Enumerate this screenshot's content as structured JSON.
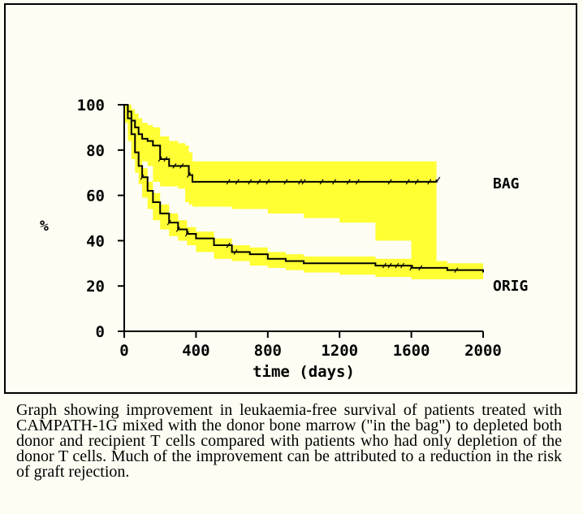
{
  "chart_data": {
    "type": "line",
    "xlabel": "time (days)",
    "ylabel": "%",
    "xlim": [
      0,
      2000
    ],
    "ylim": [
      0,
      100
    ],
    "xticks": [
      "0",
      "400",
      "800",
      "1200",
      "1600",
      "2000"
    ],
    "yticks": [
      "0",
      "20",
      "40",
      "60",
      "80",
      "100"
    ],
    "grid": false,
    "legend": "none",
    "band_color": "#ffff33",
    "line_color": "#000000",
    "series": [
      {
        "name": "BAG",
        "x": [
          0,
          20,
          40,
          60,
          80,
          100,
          130,
          160,
          200,
          250,
          300,
          340,
          360,
          380,
          600,
          800,
          1000,
          1200,
          1400,
          1600,
          1740
        ],
        "y": [
          100,
          97,
          93,
          90,
          87,
          85,
          84,
          82,
          76,
          73,
          73,
          73,
          69,
          66,
          66,
          66,
          66,
          66,
          66,
          66,
          67
        ],
        "lower": [
          100,
          93,
          87,
          82,
          79,
          77,
          75,
          73,
          66,
          64,
          64,
          63,
          57,
          56,
          55,
          54,
          52,
          50,
          48,
          40,
          27
        ],
        "upper": [
          100,
          100,
          98,
          96,
          94,
          92,
          91,
          90,
          86,
          84,
          83,
          82,
          79,
          75,
          75,
          75,
          75,
          75,
          75,
          75,
          75
        ],
        "censor_x": [
          200,
          230,
          280,
          320,
          360,
          580,
          630,
          700,
          750,
          800,
          900,
          980,
          1000,
          1100,
          1170,
          1250,
          1300,
          1480,
          1580,
          1630,
          1700,
          1750
        ]
      },
      {
        "name": "ORIG",
        "x": [
          0,
          20,
          40,
          60,
          80,
          100,
          130,
          160,
          200,
          250,
          300,
          350,
          400,
          500,
          600,
          700,
          800,
          900,
          1000,
          1200,
          1400,
          1600,
          1800,
          2000
        ],
        "y": [
          100,
          94,
          87,
          79,
          73,
          68,
          62,
          57,
          52,
          48,
          45,
          43,
          41,
          38,
          35,
          34,
          32,
          31,
          30,
          30,
          29,
          28,
          27,
          26
        ],
        "lower": [
          100,
          92,
          84,
          76,
          70,
          65,
          59,
          54,
          49,
          45,
          42,
          40,
          38,
          35,
          32,
          31,
          29,
          28,
          27,
          26,
          25,
          24,
          23,
          23
        ],
        "upper": [
          100,
          97,
          91,
          83,
          77,
          72,
          66,
          61,
          56,
          52,
          49,
          46,
          44,
          41,
          38,
          37,
          35,
          34,
          33,
          33,
          32,
          31,
          30,
          30
        ],
        "censor_x": [
          100,
          250,
          300,
          350,
          580,
          620,
          1450,
          1480,
          1520,
          1550,
          1600,
          1650,
          1850
        ]
      }
    ]
  },
  "caption": "Graph showing improvement in leukaemia-free survival of patients treated with CAMPATH-1G mixed with the donor bone marrow (\"in the bag\") to depleted both donor and recipient T cells compared with patients who had only depletion of the donor T cells. Much of the improvement can be attributed to a reduction in the risk of graft rejection."
}
